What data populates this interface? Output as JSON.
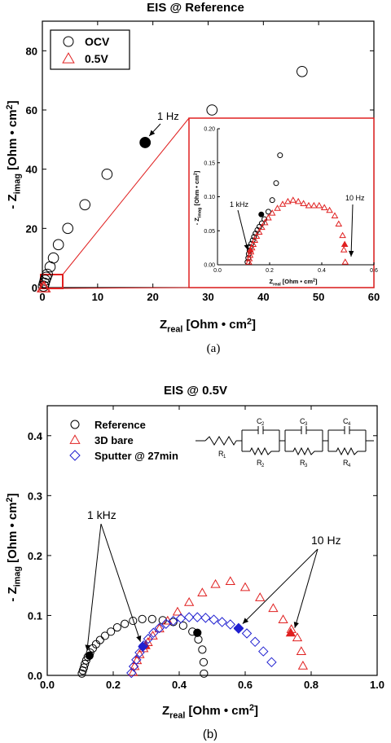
{
  "chart_data": [
    {
      "type": "scatter",
      "title": "EIS @ Reference",
      "xlabel": {
        "main": "Z",
        "sub": "real",
        "units": " [Ohm • cm",
        "sup": "2",
        "close": "]"
      },
      "ylabel": {
        "main": "- Z",
        "sub": "imag",
        "units": " [Ohm • cm",
        "sup": "2",
        "close": "]"
      },
      "xlim": [
        0,
        60
      ],
      "ylim": [
        0,
        90
      ],
      "xticks": [
        "0",
        "10",
        "20",
        "30",
        "40",
        "50",
        "60"
      ],
      "yticks": [
        "0",
        "20",
        "40",
        "60",
        "80"
      ],
      "legend": {
        "position": "top-left",
        "entries": [
          "OCV",
          "0.5V"
        ]
      },
      "colors": {
        "OCV": "#000000",
        "0.5V": "#e02020",
        "inset_frame": "#e02020"
      },
      "series": [
        {
          "name": "OCV",
          "marker": "circle-open",
          "x": [
            0.2,
            0.35,
            0.5,
            0.7,
            0.9,
            1.4,
            2.0,
            2.9,
            4.6,
            7.7,
            11.7,
            18.6,
            30.7,
            47.0
          ],
          "y": [
            0.5,
            1.5,
            2.5,
            3.5,
            4.5,
            7.0,
            10.0,
            14.5,
            20.0,
            28.0,
            38.3,
            49.0,
            60.0,
            73.0
          ],
          "highlight": {
            "x": 18.6,
            "y": 49.0
          }
        },
        {
          "name": "0.5V",
          "marker": "triangle-open",
          "x": [
            0.15,
            0.35
          ],
          "y": [
            0.05,
            0.05
          ]
        }
      ],
      "annotations": [
        {
          "text": "1 Hz",
          "at": {
            "x": 18.6,
            "y": 49.0
          }
        }
      ],
      "inset": {
        "xlim": [
          0,
          0.6
        ],
        "ylim": [
          0,
          0.2
        ],
        "xticks": [
          "0.0",
          "0.2",
          "0.4",
          "0.6"
        ],
        "yticks": [
          "0.00",
          "0.05",
          "0.10",
          "0.15",
          "0.20"
        ],
        "xlabel": {
          "main": "Z",
          "sub": "real",
          "units": " [Ohm • cm",
          "sup": "2",
          "close": "]"
        },
        "ylabel": {
          "main": "- Z",
          "sub": "imag",
          "units": " [Ohm • cm",
          "sup": "2",
          "close": "]"
        },
        "series": [
          {
            "name": "OCV",
            "marker": "circle-open",
            "x": [
              0.115,
              0.118,
              0.12,
              0.123,
              0.126,
              0.13,
              0.135,
              0.14,
              0.146,
              0.153,
              0.161,
              0.17,
              0.18,
              0.195,
              0.21,
              0.225,
              0.24
            ],
            "y": [
              0.004,
              0.01,
              0.016,
              0.021,
              0.026,
              0.031,
              0.036,
              0.041,
              0.046,
              0.051,
              0.056,
              0.061,
              0.067,
              0.078,
              0.095,
              0.12,
              0.161
            ],
            "highlight": {
              "x": 0.168,
              "y": 0.074
            }
          },
          {
            "name": "0.5V",
            "marker": "triangle-open",
            "x": [
              0.12,
              0.122,
              0.125,
              0.128,
              0.132,
              0.137,
              0.143,
              0.15,
              0.16,
              0.17,
              0.182,
              0.195,
              0.21,
              0.23,
              0.25,
              0.27,
              0.29,
              0.31,
              0.33,
              0.35,
              0.37,
              0.39,
              0.41,
              0.43,
              0.45,
              0.465,
              0.48,
              0.485,
              0.49
            ],
            "y": [
              0.004,
              0.009,
              0.014,
              0.019,
              0.025,
              0.03,
              0.036,
              0.042,
              0.048,
              0.055,
              0.062,
              0.069,
              0.076,
              0.083,
              0.089,
              0.093,
              0.095,
              0.093,
              0.09,
              0.087,
              0.087,
              0.087,
              0.084,
              0.08,
              0.072,
              0.06,
              0.043,
              0.022,
              0.004
            ],
            "highlight": {
              "x": 0.488,
              "y": 0.03
            },
            "highlight2": {
              "x": 0.126,
              "y": 0.022
            }
          }
        ],
        "annotations": [
          {
            "text": "1 kHz",
            "at": {
              "x": 0.123,
              "y": 0.02
            }
          },
          {
            "text": "10 Hz",
            "at": {
              "x": 0.5,
              "y": 0.012
            }
          }
        ]
      },
      "caption": "(a)"
    },
    {
      "type": "scatter",
      "title": "EIS @ 0.5V",
      "xlabel": {
        "main": "Z",
        "sub": "real",
        "units": " [Ohm • cm",
        "sup": "2",
        "close": "]"
      },
      "ylabel": {
        "main": "- Z",
        "sub": "imag",
        "units": " [Ohm • cm",
        "sup": "2",
        "close": "]"
      },
      "xlim": [
        0.0,
        1.0
      ],
      "ylim": [
        0.0,
        0.45
      ],
      "xticks": [
        "0.0",
        "0.2",
        "0.4",
        "0.6",
        "0.8",
        "1.0"
      ],
      "yticks": [
        "0.0",
        "0.1",
        "0.2",
        "0.3",
        "0.4"
      ],
      "legend": {
        "position": "top-left",
        "entries": [
          "Reference",
          "3D bare",
          "Sputter @ 27min"
        ]
      },
      "colors": {
        "Reference": "#000000",
        "3D bare": "#e02020",
        "Sputter @ 27min": "#2020d0"
      },
      "series": [
        {
          "name": "Reference",
          "marker": "circle-open",
          "x": [
            0.105,
            0.108,
            0.111,
            0.114,
            0.118,
            0.123,
            0.13,
            0.138,
            0.148,
            0.16,
            0.175,
            0.193,
            0.212,
            0.235,
            0.26,
            0.288,
            0.318,
            0.35,
            0.382,
            0.412,
            0.44,
            0.458,
            0.47,
            0.474,
            0.475
          ],
          "y": [
            0.003,
            0.008,
            0.013,
            0.019,
            0.025,
            0.031,
            0.038,
            0.045,
            0.052,
            0.059,
            0.066,
            0.073,
            0.08,
            0.086,
            0.091,
            0.094,
            0.094,
            0.092,
            0.089,
            0.083,
            0.073,
            0.06,
            0.043,
            0.022,
            0.003
          ],
          "highlight": {
            "x": 0.128,
            "y": 0.033
          },
          "highlight2": {
            "x": 0.455,
            "y": 0.071
          }
        },
        {
          "name": "3D bare",
          "marker": "triangle-open",
          "x": [
            0.26,
            0.265,
            0.272,
            0.28,
            0.292,
            0.305,
            0.32,
            0.34,
            0.365,
            0.395,
            0.43,
            0.47,
            0.51,
            0.555,
            0.6,
            0.645,
            0.685,
            0.715,
            0.74,
            0.758,
            0.77,
            0.775
          ],
          "y": [
            0.005,
            0.015,
            0.025,
            0.035,
            0.045,
            0.055,
            0.066,
            0.078,
            0.091,
            0.106,
            0.122,
            0.138,
            0.152,
            0.157,
            0.147,
            0.13,
            0.112,
            0.093,
            0.077,
            0.063,
            0.04,
            0.016
          ],
          "highlight": {
            "x": 0.298,
            "y": 0.05
          },
          "highlight2": {
            "x": 0.738,
            "y": 0.071
          }
        },
        {
          "name": "Sputter @ 27min",
          "marker": "diamond-open",
          "x": [
            0.255,
            0.262,
            0.27,
            0.28,
            0.292,
            0.306,
            0.322,
            0.34,
            0.36,
            0.382,
            0.405,
            0.43,
            0.455,
            0.48,
            0.505,
            0.53,
            0.555,
            0.58,
            0.605,
            0.63,
            0.655,
            0.68
          ],
          "y": [
            0.004,
            0.015,
            0.026,
            0.038,
            0.05,
            0.061,
            0.071,
            0.079,
            0.086,
            0.091,
            0.095,
            0.097,
            0.097,
            0.096,
            0.093,
            0.089,
            0.085,
            0.079,
            0.07,
            0.056,
            0.04,
            0.022
          ],
          "highlight": {
            "x": 0.29,
            "y": 0.048
          },
          "highlight2": {
            "x": 0.58,
            "y": 0.078
          }
        }
      ],
      "annotations": [
        {
          "text": "1 kHz",
          "targets": [
            {
              "x": 0.128,
              "y": 0.033
            },
            {
              "x": 0.29,
              "y": 0.048
            }
          ]
        },
        {
          "text": "10 Hz",
          "targets": [
            {
              "x": 0.58,
              "y": 0.078
            },
            {
              "x": 0.738,
              "y": 0.071
            }
          ]
        }
      ],
      "circuit": {
        "labels": [
          "R",
          "C",
          "R",
          "C",
          "R",
          "C",
          "R"
        ],
        "subs": [
          "1",
          "2",
          "2",
          "3",
          "3",
          "4",
          "4"
        ]
      },
      "caption": "(b)"
    }
  ]
}
